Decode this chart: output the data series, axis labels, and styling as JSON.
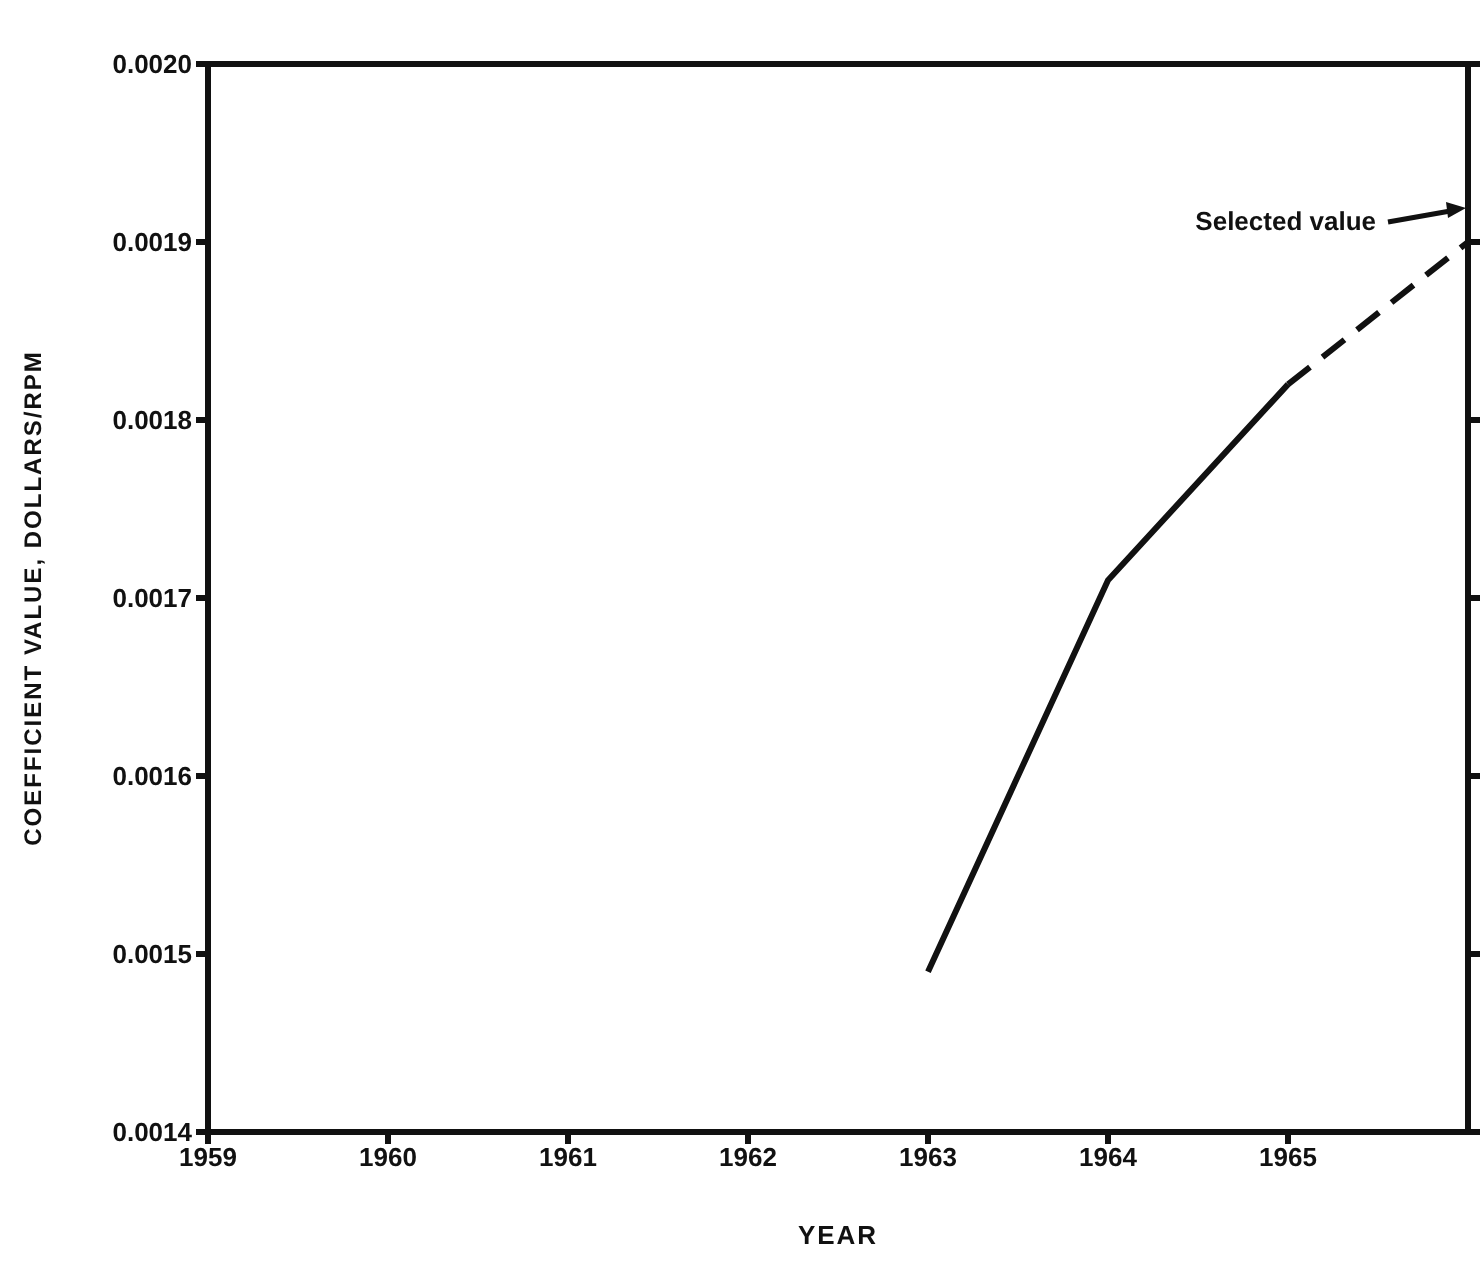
{
  "chart_data": {
    "type": "line",
    "xlabel": "YEAR",
    "ylabel": "COEFFICIENT VALUE, DOLLARS/RPM",
    "series": [
      {
        "x": [
          1963,
          1964,
          1965
        ],
        "values": [
          0.00149,
          0.00171,
          0.00182
        ],
        "color": "#111111",
        "line_style": "solid"
      },
      {
        "x": [
          1965,
          1966
        ],
        "values": [
          0.00182,
          0.0019
        ],
        "color": "#111111",
        "line_style": "dashed"
      }
    ],
    "annotations": [
      "Selected value"
    ],
    "xlim": [
      1959,
      1966
    ],
    "xticks": [
      1959,
      1960,
      1961,
      1962,
      1963,
      1964,
      1965
    ],
    "ylim": [
      0.0014,
      0.002
    ],
    "yticks": [
      {
        "value": 0.0014,
        "label": "0.0014"
      },
      {
        "value": 0.0015,
        "label": "0.0015"
      },
      {
        "value": 0.0016,
        "label": "0.0016"
      },
      {
        "value": 0.0017,
        "label": "0.0017"
      },
      {
        "value": 0.0018,
        "label": "0.0018"
      },
      {
        "value": 0.0019,
        "label": "0.0019"
      },
      {
        "value": 0.002,
        "label": "0.0020"
      }
    ],
    "legend": false,
    "marker": "none"
  }
}
